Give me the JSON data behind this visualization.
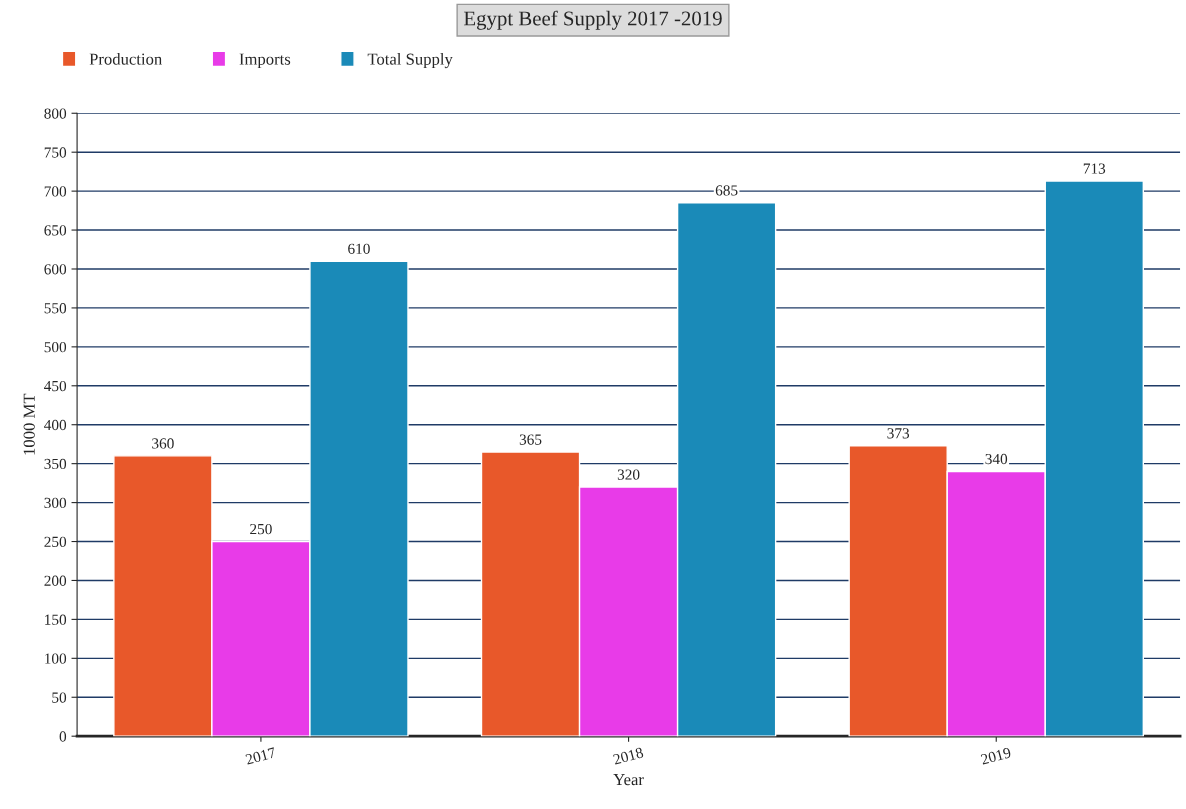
{
  "chart_data": {
    "type": "bar",
    "title": "Egypt Beef Supply 2017 -2019",
    "xlabel": "Year",
    "ylabel": "1000 MT",
    "categories": [
      "2017",
      "2018",
      "2019"
    ],
    "series": [
      {
        "name": "Production",
        "color": "#e8582a",
        "values": [
          360,
          365,
          373
        ]
      },
      {
        "name": "Imports",
        "color": "#e83be8",
        "values": [
          250,
          320,
          340
        ]
      },
      {
        "name": "Total Supply",
        "color": "#1a8ab8",
        "values": [
          610,
          685,
          713
        ]
      }
    ],
    "ylim": [
      0,
      800
    ],
    "yticks": [
      0,
      50,
      100,
      150,
      200,
      250,
      300,
      350,
      400,
      450,
      500,
      550,
      600,
      650,
      700,
      750,
      800
    ],
    "grid": "y",
    "legend": "top left",
    "data_labels": true
  }
}
